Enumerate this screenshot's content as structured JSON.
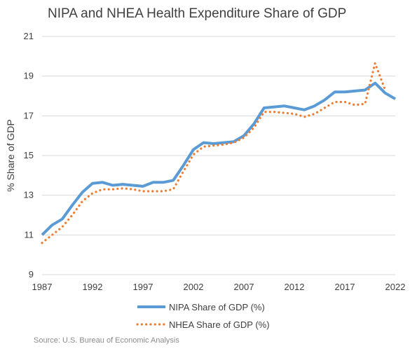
{
  "chart_data": {
    "type": "line",
    "title": "NIPA and NHEA Health Expenditure Share of GDP",
    "ylabel": "% Share of GDP",
    "xlabel": "",
    "ylim": [
      9,
      21
    ],
    "xlim": [
      1987,
      2022
    ],
    "y_ticks": [
      9,
      11,
      13,
      15,
      17,
      19,
      21
    ],
    "x_ticks": [
      1987,
      1992,
      1997,
      2002,
      2007,
      2012,
      2017,
      2022
    ],
    "grid": true,
    "legend_position": "bottom",
    "series": [
      {
        "name": "NIPA Share of GDP (%)",
        "color": "#5b9bd5",
        "style": "solid",
        "x": [
          1987,
          1988,
          1989,
          1990,
          1991,
          1992,
          1993,
          1994,
          1995,
          1996,
          1997,
          1998,
          1999,
          2000,
          2001,
          2002,
          2003,
          2004,
          2005,
          2006,
          2007,
          2008,
          2009,
          2010,
          2011,
          2012,
          2013,
          2014,
          2015,
          2016,
          2017,
          2018,
          2019,
          2020,
          2021,
          2022
        ],
        "values": [
          11.0,
          11.5,
          11.8,
          12.5,
          13.15,
          13.6,
          13.65,
          13.5,
          13.55,
          13.5,
          13.45,
          13.65,
          13.65,
          13.75,
          14.5,
          15.3,
          15.65,
          15.6,
          15.65,
          15.7,
          16.0,
          16.6,
          17.4,
          17.45,
          17.5,
          17.4,
          17.3,
          17.5,
          17.8,
          18.2,
          18.2,
          18.25,
          18.3,
          18.65,
          18.15,
          17.85
        ]
      },
      {
        "name": "NHEA Share of GDP (%)",
        "color": "#ed7d31",
        "style": "dotted",
        "x": [
          1987,
          1988,
          1989,
          1990,
          1991,
          1992,
          1993,
          1994,
          1995,
          1996,
          1997,
          1998,
          1999,
          2000,
          2001,
          2002,
          2003,
          2004,
          2005,
          2006,
          2007,
          2008,
          2009,
          2010,
          2011,
          2012,
          2013,
          2014,
          2015,
          2016,
          2017,
          2018,
          2019,
          2020,
          2021,
          2022
        ],
        "values": [
          10.6,
          11.0,
          11.4,
          12.0,
          12.7,
          13.1,
          13.3,
          13.3,
          13.35,
          13.3,
          13.2,
          13.2,
          13.2,
          13.3,
          14.2,
          15.05,
          15.45,
          15.5,
          15.55,
          15.65,
          15.9,
          16.4,
          17.2,
          17.2,
          17.15,
          17.1,
          16.95,
          17.1,
          17.4,
          17.7,
          17.7,
          17.55,
          17.6,
          19.65,
          18.3,
          null
        ]
      }
    ],
    "source": "Source: U.S. Bureau of Economic Analysis"
  }
}
